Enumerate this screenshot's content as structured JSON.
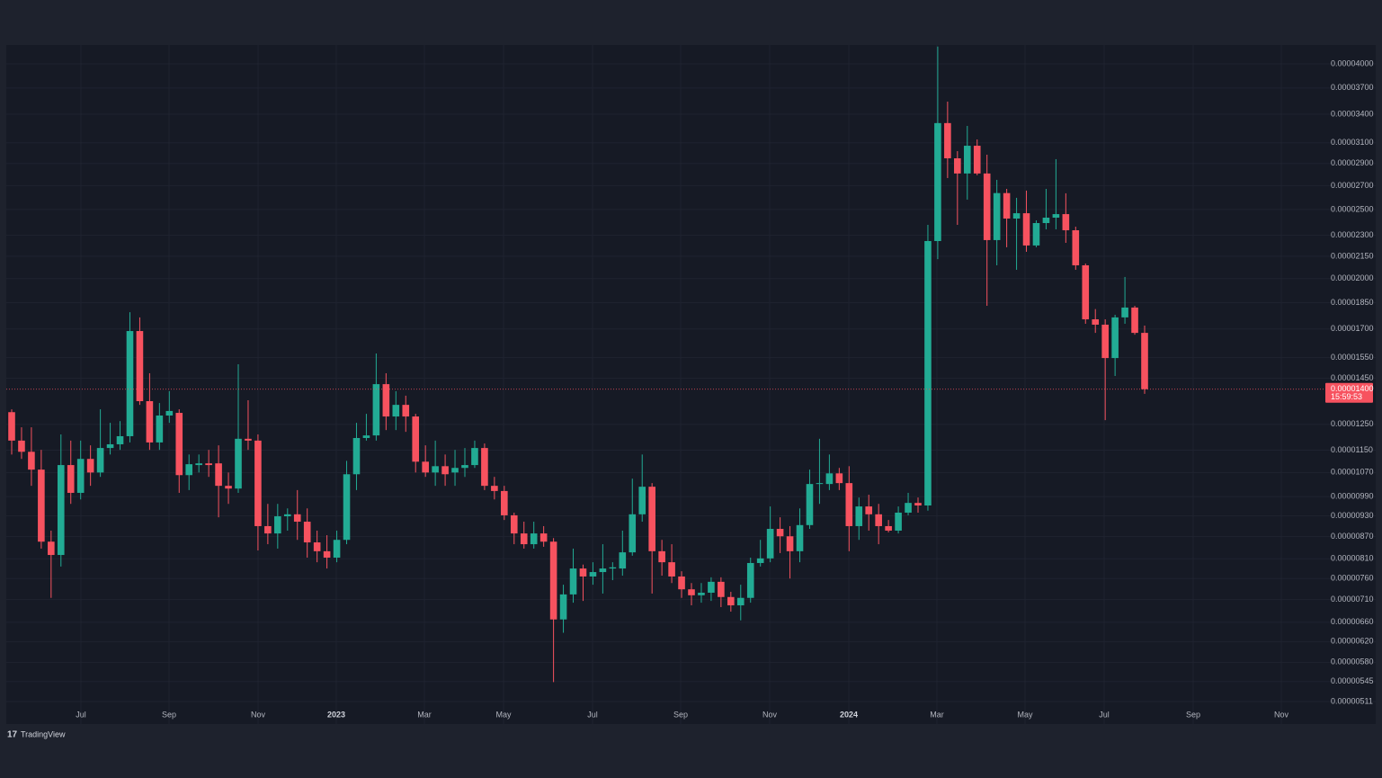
{
  "chart_data": {
    "type": "candlestick",
    "log_scale": true,
    "grid": true,
    "up_color": "#22ab94",
    "down_color": "#f7525f",
    "open": [
      1.3e-05,
      1.186e-05,
      1.144e-05,
      1.08e-05,
      8.56e-06,
      8.2e-06,
      1.096e-05,
      1.002e-05,
      1.118e-05,
      1.07e-05,
      1.158e-05,
      1.172e-05,
      1.203e-05,
      1.689e-05,
      1.347e-05,
      1.179e-05,
      1.286e-05,
      1.297e-05,
      1.061e-05,
      1.096e-05,
      1.102e-05,
      1.102e-05,
      1.025e-05,
      1.016e-05,
      1.193e-05,
      1.186e-05,
      9e-06,
      8.79e-06,
      9.29e-06,
      9.35e-06,
      9.13e-06,
      8.54e-06,
      8.3e-06,
      8.13e-06,
      8.61e-06,
      1.064e-05,
      1.196e-05,
      1.206e-05,
      1.423e-05,
      1.282e-05,
      1.331e-05,
      1.282e-05,
      1.108e-05,
      1.07e-05,
      1.092e-05,
      1.07e-05,
      1.086e-05,
      1.096e-05,
      1.158e-05,
      1.025e-05,
      1.008e-05,
      9.32e-06,
      8.79e-06,
      8.49e-06,
      8.79e-06,
      8.56e-06,
      6.66e-06,
      7.22e-06,
      7.85e-06,
      7.65e-06,
      7.76e-06,
      7.85e-06,
      7.85e-06,
      8.27e-06,
      9.35e-06,
      1.022e-05,
      8.3e-06,
      8.01e-06,
      7.65e-06,
      7.34e-06,
      7.2e-06,
      7.26e-06,
      7.52e-06,
      7.16e-06,
      6.97e-06,
      7.14e-06,
      7.99e-06,
      8.11e-06,
      8.92e-06,
      8.71e-06,
      8.3e-06,
      9.03e-06,
      1.031e-05,
      1.031e-05,
      1.067e-05,
      1.034e-05,
      9e-06,
      9.59e-06,
      9.35e-06,
      9e-06,
      8.87e-06,
      9.4e-06,
      9.7e-06,
      9.62e-06,
      2.258e-05,
      3.304e-05,
      2.949e-05,
      2.808e-05,
      3.071e-05,
      2.808e-05,
      2.265e-05,
      2.636e-05,
      2.428e-05,
      2.47e-05,
      2.226e-05,
      2.393e-05,
      2.435e-05,
      2.463e-05,
      2.338e-05,
      2.088e-05,
      1.754e-05,
      1.724e-05,
      1.548e-05,
      1.765e-05,
      1.822e-05,
      1.679e-05
    ],
    "high": [
      1.312e-05,
      1.238e-05,
      1.238e-05,
      1.151e-05,
      8.87e-06,
      1.21e-05,
      1.186e-05,
      1.186e-05,
      1.168e-05,
      1.312e-05,
      1.256e-05,
      1.263e-05,
      1.795e-05,
      1.765e-05,
      1.474e-05,
      1.339e-05,
      1.391e-05,
      1.312e-05,
      1.134e-05,
      1.134e-05,
      1.151e-05,
      1.168e-05,
      1.07e-05,
      1.517e-05,
      1.351e-05,
      1.21e-05,
      9.67e-06,
      9.67e-06,
      9.53e-06,
      1.011e-05,
      9.53e-06,
      8.87e-06,
      8.74e-06,
      8.87e-06,
      1.111e-05,
      1.256e-05,
      1.293e-05,
      1.571e-05,
      1.474e-05,
      1.391e-05,
      1.371e-05,
      1.293e-05,
      1.168e-05,
      1.186e-05,
      1.134e-05,
      1.151e-05,
      1.158e-05,
      1.186e-05,
      1.175e-05,
      1.055e-05,
      1.025e-05,
      9.4e-06,
      9.13e-06,
      9.13e-06,
      9e-06,
      8.66e-06,
      7.45e-06,
      8.37e-06,
      7.95e-06,
      8.01e-06,
      8.49e-06,
      8.01e-06,
      8.87e-06,
      1.049e-05,
      1.134e-05,
      1.034e-05,
      8.61e-06,
      8.49e-06,
      7.78e-06,
      7.49e-06,
      7.49e-06,
      7.63e-06,
      7.63e-06,
      7.28e-06,
      7.45e-06,
      8.13e-06,
      8.61e-06,
      9.59e-06,
      9.26e-06,
      9e-06,
      9.53e-06,
      1.08e-05,
      1.193e-05,
      1.134e-05,
      1.086e-05,
      1.092e-05,
      9.87e-06,
      9.96e-06,
      9.67e-06,
      9.18e-06,
      9.59e-06,
      1.002e-05,
      9.87e-06,
      2.379e-05,
      4.23e-05,
      3.541e-05,
      3.018e-05,
      3.274e-05,
      3.134e-05,
      2.984e-05,
      2.751e-05,
      2.672e-05,
      2.596e-05,
      2.657e-05,
      2.414e-05,
      2.672e-05,
      2.941e-05,
      2.634e-05,
      2.365e-05,
      2.1e-05,
      1.813e-05,
      1.754e-05,
      1.78e-05,
      2.011e-05,
      1.832e-05,
      1.719e-05
    ],
    "low": [
      1.134e-05,
      1.118e-05,
      1.025e-05,
      8.37e-06,
      7.14e-06,
      7.9e-06,
      9.67e-06,
      9.81e-06,
      1.025e-05,
      1.055e-05,
      1.134e-05,
      1.151e-05,
      1.179e-05,
      1.331e-05,
      1.151e-05,
      1.151e-05,
      1.256e-05,
      1.002e-05,
      1.011e-05,
      1.07e-05,
      1.055e-05,
      9.26e-06,
      9.67e-06,
      1.002e-05,
      1.151e-05,
      8.32e-06,
      8.49e-06,
      8.37e-06,
      8.87e-06,
      8.61e-06,
      8.13e-06,
      8.01e-06,
      7.85e-06,
      8.01e-06,
      8.49e-06,
      1.011e-05,
      1.186e-05,
      1.186e-05,
      1.227e-05,
      1.227e-05,
      1.22e-05,
      1.07e-05,
      1.055e-05,
      1.025e-05,
      1.025e-05,
      1.025e-05,
      1.055e-05,
      1.086e-05,
      1.011e-05,
      9.81e-06,
      9.18e-06,
      8.49e-06,
      8.37e-06,
      8.37e-06,
      8.42e-06,
      5.44e-06,
      6.38e-06,
      7.03e-06,
      7.07e-06,
      7.45e-06,
      7.24e-06,
      7.56e-06,
      7.67e-06,
      8.18e-06,
      9.13e-06,
      7.24e-06,
      7.67e-06,
      7.49e-06,
      7.14e-06,
      6.97e-06,
      7.03e-06,
      7.07e-06,
      6.93e-06,
      6.83e-06,
      6.64e-06,
      7.03e-06,
      7.9e-06,
      8.01e-06,
      8.25e-06,
      7.6e-06,
      8.01e-06,
      8.92e-06,
      9.67e-06,
      1.011e-05,
      1.011e-05,
      8.3e-06,
      8.61e-06,
      8.87e-06,
      8.49e-06,
      8.82e-06,
      8.79e-06,
      9.32e-06,
      9.4e-06,
      9.46e-06,
      2.13e-05,
      2.767e-05,
      2.379e-05,
      2.581e-05,
      2.792e-05,
      1.832e-05,
      2.088e-05,
      2.213e-05,
      2.058e-05,
      2.181e-05,
      2.213e-05,
      2.345e-05,
      2.345e-05,
      2.245e-05,
      2.058e-05,
      1.729e-05,
      1.679e-05,
      1.267e-05,
      1.461e-05,
      1.729e-05,
      1.669e-05,
      1.379e-05
    ],
    "close": [
      1.186e-05,
      1.144e-05,
      1.08e-05,
      8.56e-06,
      8.2e-06,
      1.096e-05,
      1.002e-05,
      1.118e-05,
      1.07e-05,
      1.158e-05,
      1.172e-05,
      1.203e-05,
      1.689e-05,
      1.347e-05,
      1.179e-05,
      1.286e-05,
      1.305e-05,
      1.061e-05,
      1.099e-05,
      1.102e-05,
      1.096e-05,
      1.025e-05,
      1.016e-05,
      1.193e-05,
      1.186e-05,
      9e-06,
      8.79e-06,
      9.29e-06,
      9.35e-06,
      9.13e-06,
      8.54e-06,
      8.3e-06,
      8.13e-06,
      8.61e-06,
      1.064e-05,
      1.196e-05,
      1.206e-05,
      1.423e-05,
      1.282e-05,
      1.331e-05,
      1.282e-05,
      1.108e-05,
      1.07e-05,
      1.092e-05,
      1.064e-05,
      1.086e-05,
      1.096e-05,
      1.158e-05,
      1.025e-05,
      1.008e-05,
      9.32e-06,
      8.79e-06,
      8.49e-06,
      8.79e-06,
      8.56e-06,
      6.66e-06,
      7.22e-06,
      7.85e-06,
      7.65e-06,
      7.76e-06,
      7.85e-06,
      7.88e-06,
      8.27e-06,
      9.35e-06,
      1.022e-05,
      8.3e-06,
      8.01e-06,
      7.65e-06,
      7.34e-06,
      7.2e-06,
      7.26e-06,
      7.52e-06,
      7.16e-06,
      6.97e-06,
      7.14e-06,
      7.99e-06,
      8.11e-06,
      8.92e-06,
      8.71e-06,
      8.3e-06,
      9.03e-06,
      1.031e-05,
      1.034e-05,
      1.067e-05,
      1.034e-05,
      9e-06,
      9.59e-06,
      9.35e-06,
      9e-06,
      8.87e-06,
      9.4e-06,
      9.7e-06,
      9.62e-06,
      2.258e-05,
      3.304e-05,
      2.949e-05,
      2.808e-05,
      3.071e-05,
      2.808e-05,
      2.265e-05,
      2.636e-05,
      2.428e-05,
      2.47e-05,
      2.226e-05,
      2.393e-05,
      2.435e-05,
      2.463e-05,
      2.338e-05,
      2.088e-05,
      1.754e-05,
      1.724e-05,
      1.548e-05,
      1.765e-05,
      1.822e-05,
      1.679e-05,
      1.4e-05
    ],
    "ylim": [
      4.78e-06,
      4.251e-05
    ],
    "yticks": [
      {
        "value": 4e-05,
        "label": "0.00004000"
      },
      {
        "value": 3.7e-05,
        "label": "0.00003700"
      },
      {
        "value": 3.4e-05,
        "label": "0.00003400"
      },
      {
        "value": 3.1e-05,
        "label": "0.00003100"
      },
      {
        "value": 2.9e-05,
        "label": "0.00002900"
      },
      {
        "value": 2.7e-05,
        "label": "0.00002700"
      },
      {
        "value": 2.5e-05,
        "label": "0.00002500"
      },
      {
        "value": 2.3e-05,
        "label": "0.00002300"
      },
      {
        "value": 2.15e-05,
        "label": "0.00002150"
      },
      {
        "value": 2e-05,
        "label": "0.00002000"
      },
      {
        "value": 1.85e-05,
        "label": "0.00001850"
      },
      {
        "value": 1.7e-05,
        "label": "0.00001700"
      },
      {
        "value": 1.55e-05,
        "label": "0.00001550"
      },
      {
        "value": 1.45e-05,
        "label": "0.00001450"
      },
      {
        "value": 1.25e-05,
        "label": "0.00001250"
      },
      {
        "value": 1.15e-05,
        "label": "0.00001150"
      },
      {
        "value": 1.07e-05,
        "label": "0.00001070"
      },
      {
        "value": 9.9e-06,
        "label": "0.00000990"
      },
      {
        "value": 9.3e-06,
        "label": "0.00000930"
      },
      {
        "value": 8.7e-06,
        "label": "0.00000870"
      },
      {
        "value": 8.1e-06,
        "label": "0.00000810"
      },
      {
        "value": 7.6e-06,
        "label": "0.00000760"
      },
      {
        "value": 7.1e-06,
        "label": "0.00000710"
      },
      {
        "value": 6.6e-06,
        "label": "0.00000660"
      },
      {
        "value": 6.2e-06,
        "label": "0.00000620"
      },
      {
        "value": 5.8e-06,
        "label": "0.00000580"
      },
      {
        "value": 5.45e-06,
        "label": "0.00000545"
      },
      {
        "value": 5.11e-06,
        "label": "0.00000511"
      }
    ],
    "xticks": [
      "Jul",
      "Sep",
      "Nov",
      "2023",
      "Mar",
      "May",
      "Jul",
      "Sep",
      "Nov",
      "2024",
      "Mar",
      "May",
      "Jul",
      "Sep",
      "Nov"
    ],
    "last_price": {
      "value": 1.4e-05,
      "label": "0.00001400",
      "countdown": "15:59:53"
    },
    "watermark": "TradingView"
  }
}
